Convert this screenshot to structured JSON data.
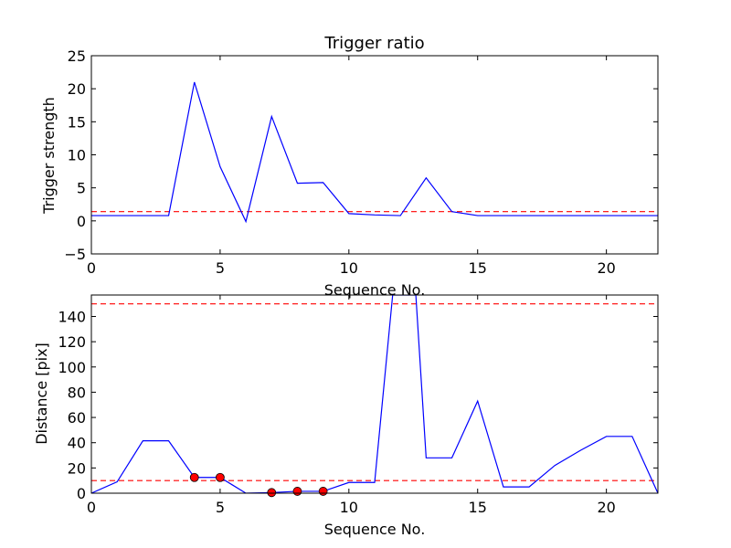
{
  "chart_data": [
    {
      "type": "line",
      "title": "Trigger ratio",
      "xlabel": "Sequence No.",
      "ylabel": "Trigger strength",
      "xlim": [
        0,
        22
      ],
      "ylim": [
        -5,
        25
      ],
      "xticks": [
        "0",
        "5",
        "10",
        "15",
        "20"
      ],
      "yticks": [
        "−5",
        "0",
        "5",
        "10",
        "15",
        "20",
        "25"
      ],
      "grid": false,
      "series": [
        {
          "color": "#0000ff",
          "x": [
            0,
            1,
            2,
            3,
            4,
            5,
            6,
            7,
            8,
            9,
            10,
            11,
            12,
            13,
            14,
            15,
            16,
            17,
            18,
            19,
            20,
            21,
            22
          ],
          "values": [
            0.8,
            0.8,
            0.8,
            0.8,
            21,
            8.2,
            -0.1,
            15.8,
            5.7,
            5.8,
            1.1,
            0.9,
            0.8,
            6.5,
            1.4,
            0.8,
            0.8,
            0.8,
            0.8,
            0.8,
            0.8,
            0.8,
            0.8
          ]
        }
      ],
      "hlines": [
        {
          "y": 1.4,
          "color": "#ff0000",
          "style": "dashed"
        }
      ],
      "markers": []
    },
    {
      "type": "line",
      "title": "",
      "xlabel": "Sequence No.",
      "ylabel": "Distance [pix]",
      "xlim": [
        0,
        22
      ],
      "ylim": [
        0,
        157
      ],
      "xticks": [
        "0",
        "5",
        "10",
        "15",
        "20"
      ],
      "yticks": [
        "0",
        "20",
        "40",
        "60",
        "80",
        "100",
        "120",
        "140"
      ],
      "grid": false,
      "series": [
        {
          "color": "#0000ff",
          "x": [
            0,
            1,
            2,
            3,
            4,
            5,
            6,
            7,
            8,
            9,
            10,
            11,
            11.7,
            12.6,
            13,
            14,
            15,
            16,
            17,
            18,
            19,
            20,
            21,
            22
          ],
          "values": [
            0,
            9,
            41.5,
            41.5,
            12.5,
            12.5,
            0,
            0.5,
            1.5,
            1.5,
            8.5,
            8.5,
            157,
            157,
            28,
            28,
            73,
            5,
            5,
            22,
            34,
            45,
            45,
            0
          ]
        }
      ],
      "hlines": [
        {
          "y": 150,
          "color": "#ff0000",
          "style": "dashed"
        },
        {
          "y": 10,
          "color": "#ff0000",
          "style": "dashed"
        }
      ],
      "markers": [
        {
          "x": 4,
          "y": 12.5,
          "color": "#ff0000"
        },
        {
          "x": 5,
          "y": 12.5,
          "color": "#ff0000"
        },
        {
          "x": 7,
          "y": 0.5,
          "color": "#ff0000"
        },
        {
          "x": 8,
          "y": 1.5,
          "color": "#ff0000"
        },
        {
          "x": 9,
          "y": 1.5,
          "color": "#ff0000"
        }
      ]
    }
  ]
}
